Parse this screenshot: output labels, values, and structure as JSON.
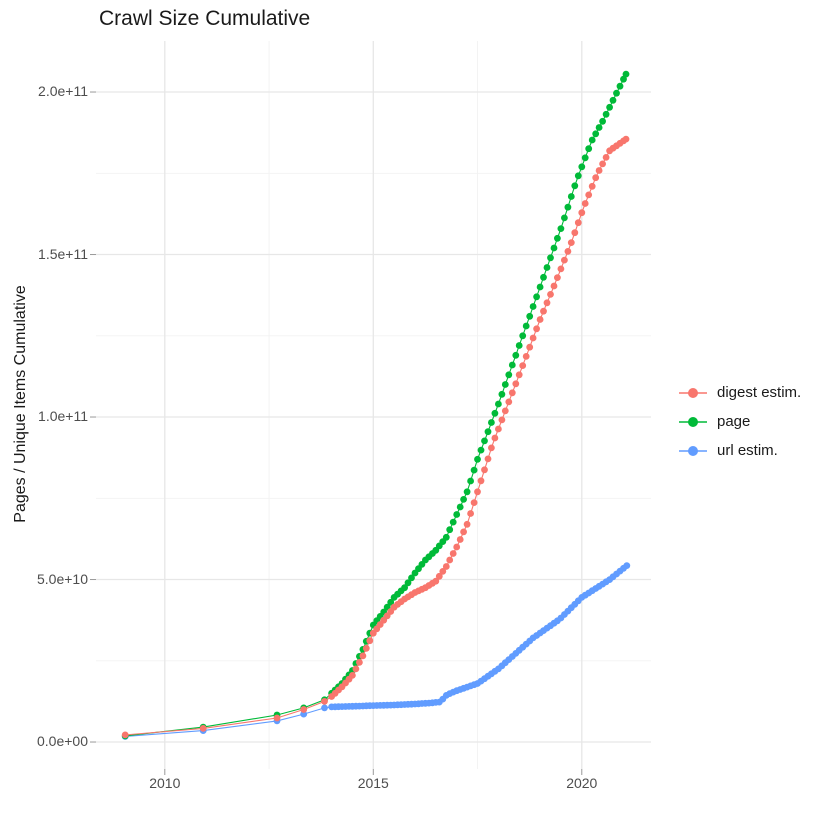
{
  "title": "Crawl Size Cumulative",
  "chart_data": {
    "type": "line",
    "title": "Crawl Size Cumulative",
    "xlabel": "",
    "ylabel": "Pages / Unique Items Cumulative",
    "units": "y values in billions (1e9); y axis shown in scientific notation",
    "grid": true,
    "legend_position": "right",
    "xlim": [
      2008.35,
      2021.66
    ],
    "ylim_e9": [
      -8.3,
      215.7
    ],
    "x_ticks": {
      "labels": [
        "2010",
        "2015",
        "2020"
      ],
      "values": [
        2010,
        2015,
        2020
      ],
      "minor": [
        2012.5,
        2017.5
      ]
    },
    "y_ticks": {
      "labels": [
        "0.0e+00",
        "5.0e+10",
        "1.0e+11",
        "1.5e+11",
        "2.0e+11"
      ],
      "values_e9": [
        0,
        50,
        100,
        150,
        200
      ],
      "minor_e9": [
        25,
        75,
        125,
        175
      ]
    },
    "marker_interval_years": 0.08333,
    "series": [
      {
        "name": "digest estim.",
        "color": "#F8766D",
        "sparse_points": [
          [
            2009.05,
            2.2
          ],
          [
            2010.92,
            4.2
          ],
          [
            2012.69,
            7.4
          ],
          [
            2013.33,
            10.0
          ],
          [
            2013.83,
            12.5
          ]
        ],
        "anchor_points": [
          [
            2014.0,
            14.0
          ],
          [
            2014.25,
            17.0
          ],
          [
            2014.5,
            20.5
          ],
          [
            2014.75,
            26.5
          ],
          [
            2015.0,
            33.5
          ],
          [
            2015.25,
            37.5
          ],
          [
            2015.5,
            41.5
          ],
          [
            2015.75,
            44.0
          ],
          [
            2016.0,
            46.0
          ],
          [
            2016.25,
            47.5
          ],
          [
            2016.5,
            49.5
          ],
          [
            2016.75,
            54.0
          ],
          [
            2017.0,
            60.0
          ],
          [
            2017.25,
            67.0
          ],
          [
            2017.5,
            77.0
          ],
          [
            2017.87,
            92.0
          ],
          [
            2018.5,
            113.0
          ],
          [
            2019.0,
            130.0
          ],
          [
            2019.42,
            143.0
          ],
          [
            2019.76,
            154.0
          ],
          [
            2020.03,
            164.0
          ],
          [
            2020.36,
            174.5
          ],
          [
            2020.67,
            182.0
          ],
          [
            2021.06,
            185.5
          ]
        ]
      },
      {
        "name": "page",
        "color": "#00BA38",
        "sparse_points": [
          [
            2009.05,
            1.9
          ],
          [
            2010.92,
            4.6
          ],
          [
            2012.69,
            8.3
          ],
          [
            2013.33,
            10.5
          ],
          [
            2013.83,
            13.0
          ]
        ],
        "anchor_points": [
          [
            2014.0,
            15.0
          ],
          [
            2014.25,
            18.0
          ],
          [
            2014.5,
            22.0
          ],
          [
            2014.75,
            28.5
          ],
          [
            2015.0,
            36.0
          ],
          [
            2015.25,
            40.0
          ],
          [
            2015.5,
            44.5
          ],
          [
            2015.75,
            47.5
          ],
          [
            2016.0,
            52.0
          ],
          [
            2016.25,
            56.0
          ],
          [
            2016.5,
            59.0
          ],
          [
            2016.75,
            63.0
          ],
          [
            2017.0,
            70.0
          ],
          [
            2017.25,
            77.0
          ],
          [
            2017.5,
            87.0
          ],
          [
            2018.0,
            104.0
          ],
          [
            2018.5,
            122.0
          ],
          [
            2019.0,
            140.0
          ],
          [
            2019.5,
            158.0
          ],
          [
            2019.88,
            173.0
          ],
          [
            2020.24,
            185.0
          ],
          [
            2020.5,
            191.0
          ],
          [
            2021.06,
            205.5
          ]
        ]
      },
      {
        "name": "url estim.",
        "color": "#619CFF",
        "sparse_points": [
          [
            2009.05,
            1.7
          ],
          [
            2010.92,
            3.5
          ],
          [
            2012.69,
            6.5
          ],
          [
            2013.33,
            8.6
          ],
          [
            2013.83,
            10.5
          ]
        ],
        "anchor_points": [
          [
            2014.0,
            10.8
          ],
          [
            2014.5,
            11.0
          ],
          [
            2015.0,
            11.2
          ],
          [
            2015.5,
            11.4
          ],
          [
            2016.0,
            11.7
          ],
          [
            2016.35,
            12.0
          ],
          [
            2016.6,
            12.3
          ],
          [
            2016.76,
            14.5
          ],
          [
            2017.0,
            15.8
          ],
          [
            2017.5,
            18.0
          ],
          [
            2018.0,
            22.5
          ],
          [
            2018.83,
            32.0
          ],
          [
            2019.47,
            37.8
          ],
          [
            2020.0,
            44.5
          ],
          [
            2020.67,
            50.0
          ],
          [
            2021.08,
            54.3
          ]
        ]
      }
    ]
  },
  "style": {
    "grid_major_color": "#e7e7e7",
    "grid_minor_color": "#f2f2f2",
    "tick_color": "#999999",
    "background": "#ffffff"
  }
}
